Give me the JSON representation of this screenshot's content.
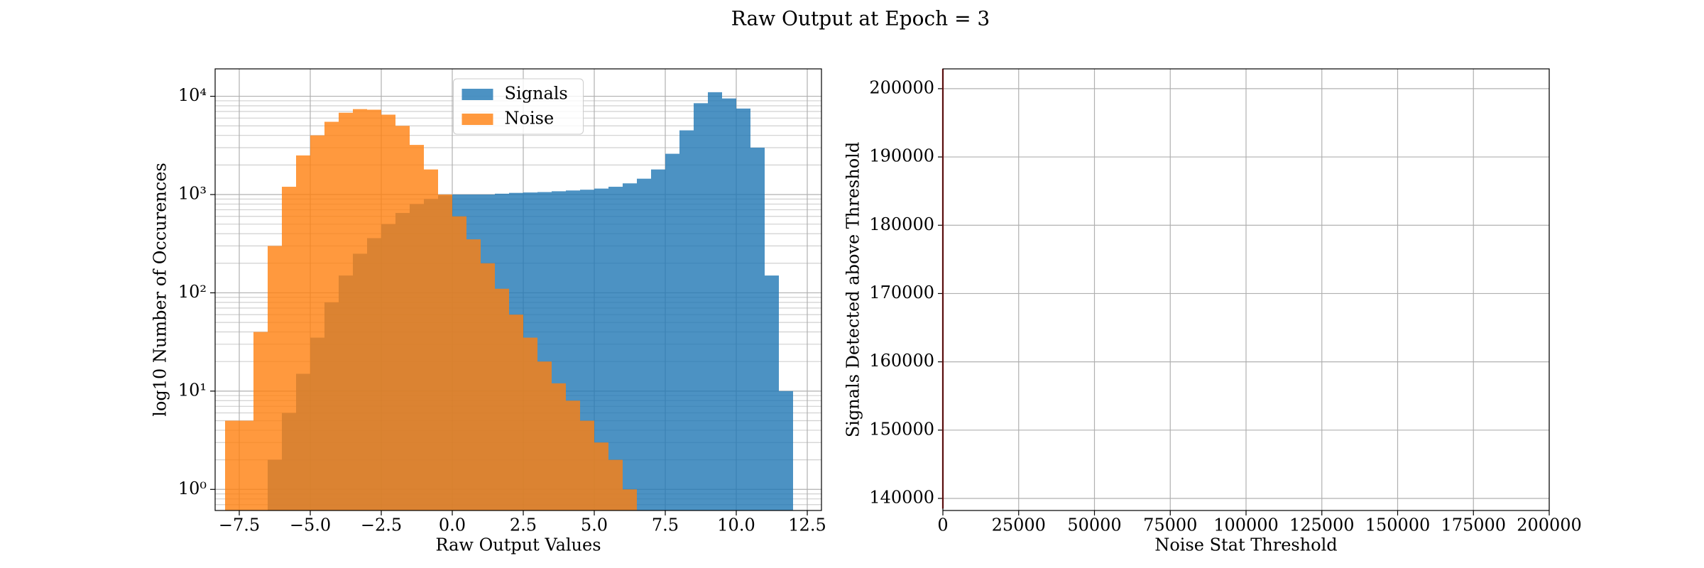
{
  "title": "Raw Output at Epoch = 3",
  "chart_data": [
    {
      "type": "histogram",
      "xlabel": "Raw Output Values",
      "ylabel": "log10 Number of Occurences",
      "xlim": [
        -8.35,
        13.0
      ],
      "ylim": [
        0.61,
        19000
      ],
      "log_y": true,
      "grid": true,
      "legend": "upper center",
      "xticks": [
        {
          "value": -7.5,
          "label": "−7.5"
        },
        {
          "value": -5.0,
          "label": "−5.0"
        },
        {
          "value": -2.5,
          "label": "−2.5"
        },
        {
          "value": 0.0,
          "label": "0.0"
        },
        {
          "value": 2.5,
          "label": "2.5"
        },
        {
          "value": 5.0,
          "label": "5.0"
        },
        {
          "value": 7.5,
          "label": "7.5"
        },
        {
          "value": 10.0,
          "label": "10.0"
        },
        {
          "value": 12.5,
          "label": "12.5"
        }
      ],
      "yticks": [
        {
          "value": 1,
          "label": "10⁰"
        },
        {
          "value": 10,
          "label": "10¹"
        },
        {
          "value": 100,
          "label": "10²"
        },
        {
          "value": 1000,
          "label": "10³"
        },
        {
          "value": 10000,
          "label": "10⁴"
        }
      ],
      "series": [
        {
          "name": "Signals",
          "color": "#1f77b4",
          "bins": [
            -6.5,
            -6.0,
            -5.5,
            -5.0,
            -4.5,
            -4.0,
            -3.5,
            -3.0,
            -2.5,
            -2.0,
            -1.5,
            -1.0,
            -0.5,
            0.0,
            0.5,
            1.0,
            1.5,
            2.0,
            2.5,
            3.0,
            3.5,
            4.0,
            4.5,
            5.0,
            5.5,
            6.0,
            6.5,
            7.0,
            7.5,
            8.0,
            8.5,
            9.0,
            9.5,
            10.0,
            10.5,
            11.0,
            11.5,
            12.0
          ],
          "values": [
            2,
            6,
            15,
            35,
            80,
            150,
            250,
            360,
            500,
            650,
            800,
            900,
            980,
            1000,
            1000,
            1000,
            1020,
            1040,
            1050,
            1060,
            1080,
            1100,
            1120,
            1150,
            1200,
            1300,
            1450,
            1800,
            2600,
            4500,
            8500,
            11000,
            9500,
            7500,
            3000,
            150,
            10
          ]
        },
        {
          "name": "Noise",
          "color": "#ff7f0e",
          "bins": [
            -8.0,
            -7.5,
            -7.0,
            -6.5,
            -6.0,
            -5.5,
            -5.0,
            -4.5,
            -4.0,
            -3.5,
            -3.0,
            -2.5,
            -2.0,
            -1.5,
            -1.0,
            -0.5,
            0.0,
            0.5,
            1.0,
            1.5,
            2.0,
            2.5,
            3.0,
            3.5,
            4.0,
            4.5,
            5.0,
            5.5,
            6.0,
            6.5
          ],
          "values": [
            5,
            5,
            40,
            300,
            1200,
            2500,
            4000,
            5500,
            6800,
            7400,
            7300,
            6500,
            5000,
            3200,
            1800,
            1000,
            600,
            350,
            200,
            110,
            60,
            35,
            20,
            12,
            8,
            5,
            3,
            2,
            1
          ]
        }
      ]
    },
    {
      "type": "line",
      "xlabel": "Noise Stat Threshold",
      "ylabel": "Signals Detected above Threshold",
      "xlim": [
        0,
        200000
      ],
      "ylim": [
        138230,
        202900
      ],
      "grid": true,
      "xticks": [
        0,
        25000,
        50000,
        75000,
        100000,
        125000,
        150000,
        175000,
        200000
      ],
      "yticks": [
        140000,
        150000,
        160000,
        170000,
        180000,
        190000,
        200000
      ],
      "series": [
        {
          "color": "#d62728",
          "x": [
            0,
            0
          ],
          "values": [
            138500,
            202900
          ]
        }
      ]
    }
  ]
}
